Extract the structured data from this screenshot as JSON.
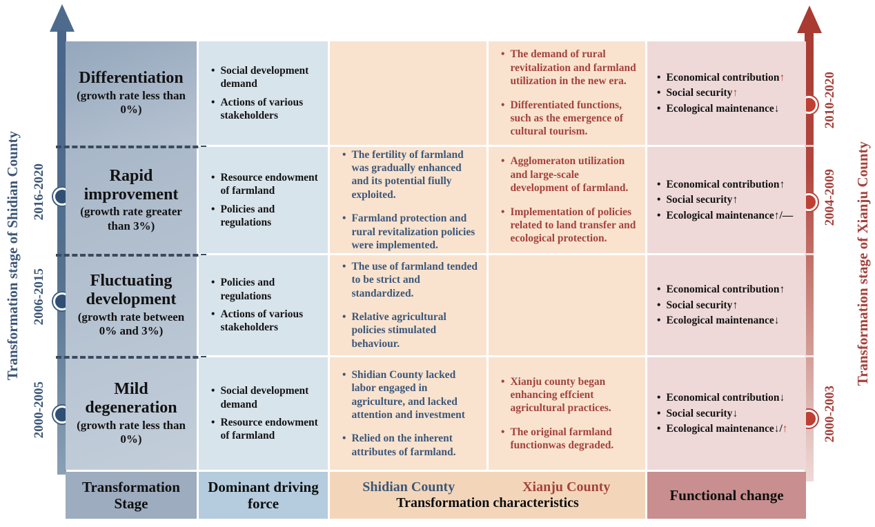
{
  "left_axis": {
    "title": "Transformation stage of Shidian County",
    "years": [
      "2016-2020",
      "2006-2015",
      "2000-2005"
    ],
    "color": "#3d5778"
  },
  "right_axis": {
    "title": "Transformation stage of Xianju County",
    "years": [
      "2010-2020",
      "2004-2009",
      "2000-2003"
    ],
    "color": "#a3423c"
  },
  "header": {
    "stage_label": "Transformation Stage",
    "driving_label": "Dominant driving force",
    "shidian_label": "Shidian County",
    "xianju_label": "Xianju County",
    "characteristics_label": "Transformation characteristics",
    "functional_label": "Functional change"
  },
  "colors": {
    "shidian_text": "#3d5778",
    "xianju_text": "#a3423c",
    "red_arrow": "#bf4540",
    "black_text": "#151515"
  },
  "rows": [
    {
      "stage": "Differentiation",
      "stage_note": "(growth rate less than 0%)",
      "driving": [
        "Social development demand",
        "Actions of various stakeholders"
      ],
      "shidian": [],
      "xianju": [
        "The demand of rural revitalization and farmland utilization in the new era.",
        "Differentiated functions, such as the emergence of cultural tourism."
      ],
      "functional": [
        {
          "label": "Economical contribution",
          "marks": [
            {
              "t": "↑",
              "c": "#bf4540"
            }
          ]
        },
        {
          "label": "Social security",
          "marks": [
            {
              "t": "↑",
              "c": "#bf4540"
            }
          ]
        },
        {
          "label": "Ecological maintenance",
          "marks": [
            {
              "t": "↓",
              "c": "#151515"
            }
          ]
        }
      ]
    },
    {
      "stage": "Rapid improvement",
      "stage_note": "(growth rate greater than 3%)",
      "driving": [
        "Resource endowment of farmland",
        "Policies and regulations"
      ],
      "shidian": [
        "The fertility of farmland was gradually enhanced and its potential fiully exploited.",
        "Farmland protection and rural revitalization policies were implemented."
      ],
      "xianju": [
        "Agglomeraton utilization and large-scale development of farmland.",
        "Implementation of policies related to land transfer and ecological protection."
      ],
      "functional": [
        {
          "label": "Economical contribution",
          "marks": [
            {
              "t": "↑",
              "c": "#151515"
            }
          ]
        },
        {
          "label": "Social security",
          "marks": [
            {
              "t": "↑",
              "c": "#151515"
            }
          ]
        },
        {
          "label": "Ecological maintenance",
          "marks": [
            {
              "t": "↑",
              "c": "#151515"
            },
            {
              "t": "/—",
              "c": "#151515"
            }
          ]
        }
      ]
    },
    {
      "stage": "Fluctuating development",
      "stage_note": "(growth rate between 0% and 3%)",
      "driving": [
        "Policies and regulations",
        "Actions of various stakeholders"
      ],
      "shidian": [
        "The use of farmland tended to be strict and standardized.",
        "Relative agricultural policies stimulated behaviour."
      ],
      "xianju": [],
      "functional": [
        {
          "label": "Economical contribution",
          "marks": [
            {
              "t": "↑",
              "c": "#151515"
            }
          ]
        },
        {
          "label": "Social security",
          "marks": [
            {
              "t": "↑",
              "c": "#151515"
            }
          ]
        },
        {
          "label": "Ecological maintenance",
          "marks": [
            {
              "t": "↓",
              "c": "#151515"
            }
          ]
        }
      ]
    },
    {
      "stage": "Mild degeneration",
      "stage_note": "(growth rate less than 0%)",
      "driving": [
        "Social development demand",
        "Resource endowment of farmland"
      ],
      "shidian": [
        "Shidian County lacked labor engaged in agriculture, and lacked attention and investment",
        "Relied on the inherent attributes of farmland."
      ],
      "xianju": [
        "Xianju county began enhancing effcient agricultural practices.",
        "The original farmland functionwas degraded."
      ],
      "functional": [
        {
          "label": "Economical contribution",
          "marks": [
            {
              "t": "↓",
              "c": "#151515"
            }
          ]
        },
        {
          "label": "Social security",
          "marks": [
            {
              "t": "↓",
              "c": "#151515"
            }
          ]
        },
        {
          "label": "Ecological maintenance",
          "marks": [
            {
              "t": "↓/",
              "c": "#151515"
            },
            {
              "t": "↑",
              "c": "#bf4540"
            }
          ]
        }
      ]
    }
  ]
}
